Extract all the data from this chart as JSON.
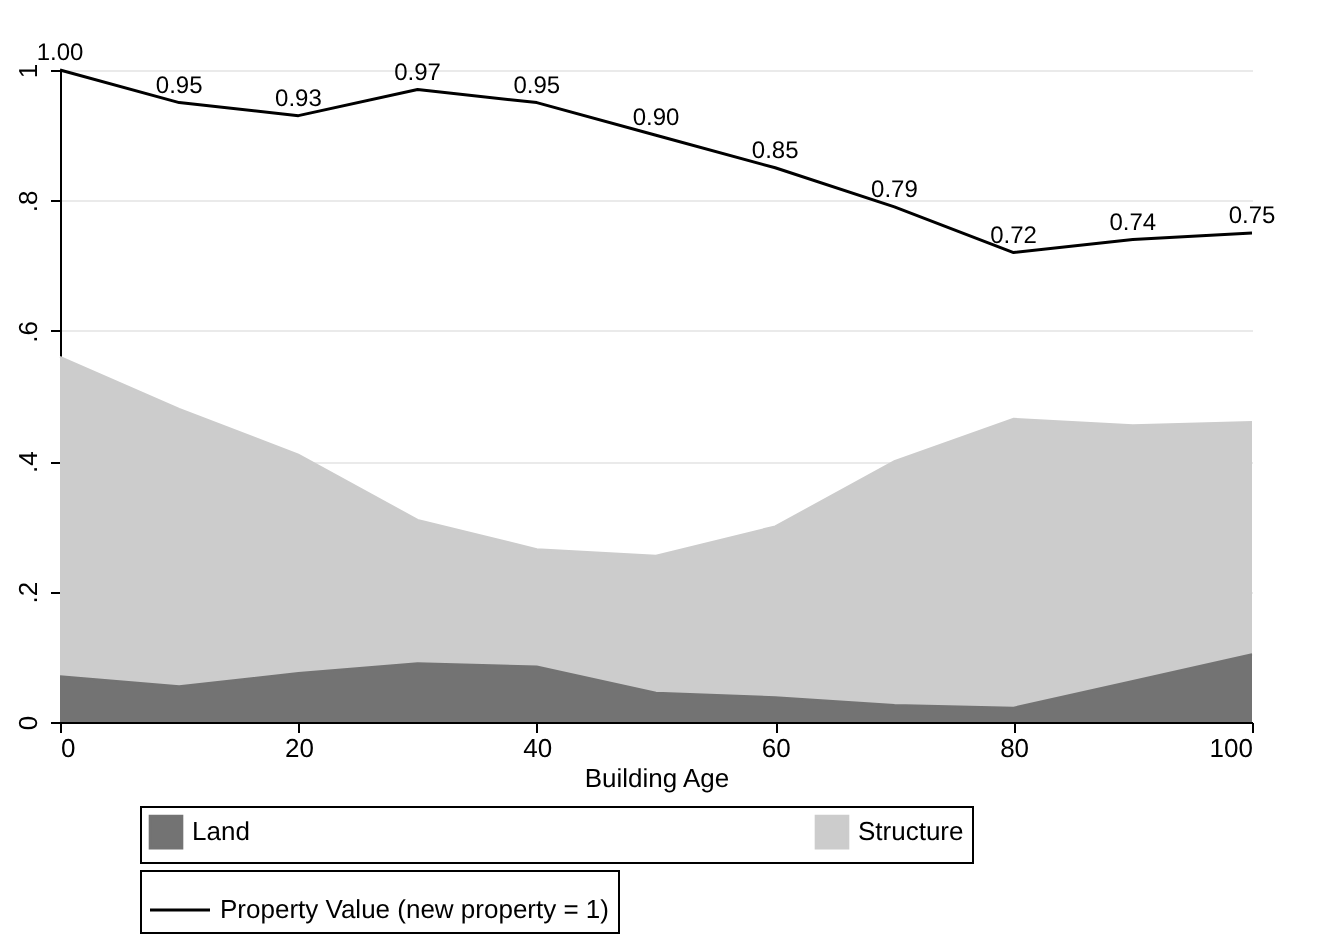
{
  "chart_data": {
    "type": "area",
    "xlabel": "Building Age",
    "x": [
      0,
      10,
      20,
      30,
      40,
      50,
      60,
      70,
      80,
      90,
      100
    ],
    "series": [
      {
        "name": "Land",
        "color": "#737373",
        "values": [
          0.07,
          0.055,
          0.075,
          0.09,
          0.085,
          0.045,
          0.038,
          0.026,
          0.022,
          0.063,
          0.104
        ]
      },
      {
        "name": "Structure",
        "color": "#cccccc",
        "values": [
          0.49,
          0.425,
          0.335,
          0.22,
          0.18,
          0.21,
          0.262,
          0.374,
          0.443,
          0.392,
          0.356
        ]
      },
      {
        "name": "Property Value (new property = 1)",
        "type": "line",
        "color": "#000000",
        "values": [
          1.0,
          0.95,
          0.93,
          0.97,
          0.95,
          0.9,
          0.85,
          0.79,
          0.72,
          0.74,
          0.75
        ],
        "value_labels": [
          "1.00",
          "0.95",
          "0.93",
          "0.97",
          "0.95",
          "0.90",
          "0.85",
          "0.79",
          "0.72",
          "0.74",
          "0.75"
        ]
      }
    ],
    "stacked": true,
    "xlim": [
      0,
      100
    ],
    "xticks": [
      0,
      20,
      40,
      60,
      80,
      100
    ],
    "ylim": [
      0,
      1
    ],
    "yticks": [
      0,
      {
        "value": 0.2,
        "label": ".2"
      },
      {
        "value": 0.4,
        "label": ".4"
      },
      {
        "value": 0.6,
        "label": ".6"
      },
      {
        "value": 0.8,
        "label": ".8"
      },
      1
    ],
    "grid": "y",
    "legend": "bottom",
    "line_style": "solid",
    "marker": "none"
  }
}
